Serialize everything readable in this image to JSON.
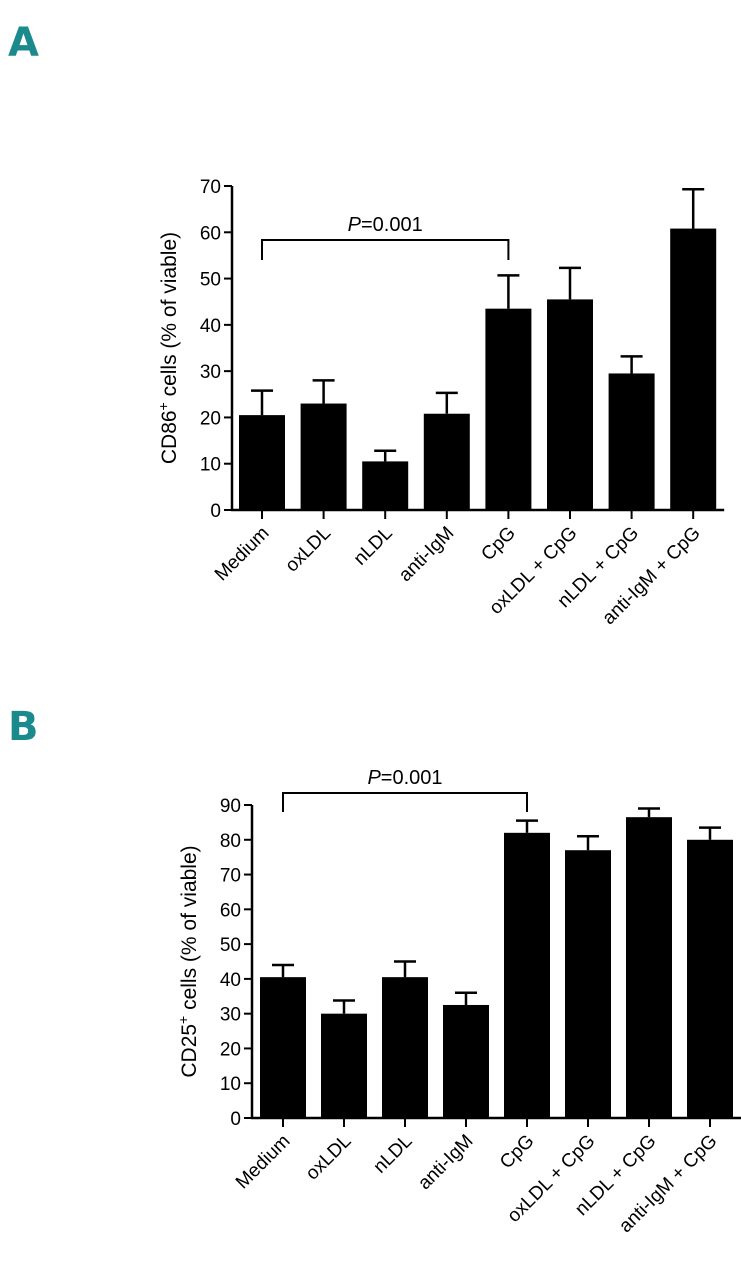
{
  "panels": [
    {
      "letter": "A",
      "chart_data": {
        "type": "bar",
        "categories": [
          "Medium",
          "oxLDL",
          "nLDL",
          "anti-IgM",
          "CpG",
          "oxLDL + CpG",
          "nLDL + CpG",
          "anti-IgM + CpG"
        ],
        "values": [
          20.5,
          23.0,
          10.5,
          20.8,
          43.5,
          45.5,
          29.5,
          60.8
        ],
        "errors": [
          5.3,
          5.0,
          2.3,
          4.5,
          7.2,
          6.8,
          3.7,
          8.5
        ],
        "ylabel_main": "CD86",
        "ylabel_sup": "+",
        "ylabel_rest": " cells (% of viable)",
        "ylim": [
          0,
          70
        ],
        "yticks": [
          0,
          10,
          20,
          30,
          40,
          50,
          60,
          70
        ],
        "grid": false,
        "bar_color": "#000000",
        "annotation": {
          "italic": "P",
          "rest": "=0.001",
          "from": "Medium",
          "to": "CpG"
        }
      }
    },
    {
      "letter": "B",
      "chart_data": {
        "type": "bar",
        "categories": [
          "Medium",
          "oxLDL",
          "nLDL",
          "anti-IgM",
          "CpG",
          "oxLDL + CpG",
          "nLDL + CpG",
          "anti-IgM + CpG"
        ],
        "values": [
          40.5,
          30.0,
          40.5,
          32.5,
          82.0,
          77.0,
          86.5,
          80.0
        ],
        "errors": [
          3.5,
          3.8,
          4.5,
          3.5,
          3.5,
          4.0,
          2.5,
          3.5
        ],
        "ylabel_main": "CD25",
        "ylabel_sup": "+",
        "ylabel_rest": " cells (% of viable)",
        "ylim": [
          0,
          90
        ],
        "yticks": [
          0,
          10,
          20,
          30,
          40,
          50,
          60,
          70,
          80,
          90
        ],
        "grid": false,
        "bar_color": "#000000",
        "annotation": {
          "italic": "P",
          "rest": "=0.001",
          "from": "Medium",
          "to": "CpG"
        }
      }
    }
  ]
}
